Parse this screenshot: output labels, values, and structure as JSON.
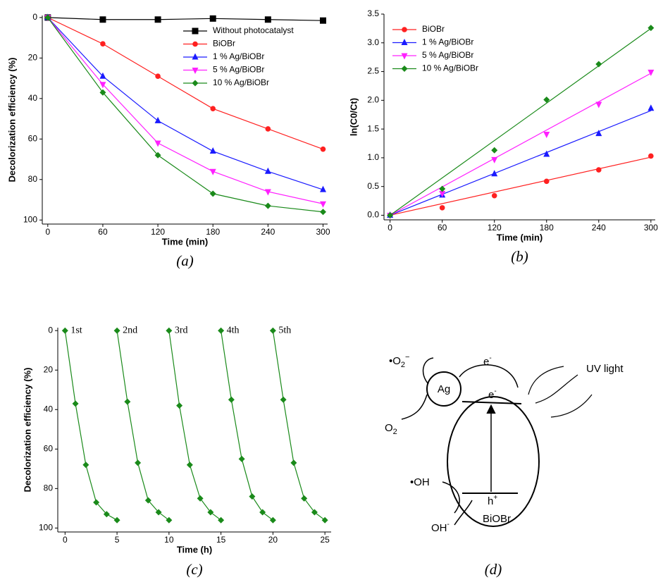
{
  "chart_data": [
    {
      "type": "line",
      "caption": "(a)",
      "xlabel": "Time (min)",
      "ylabel": "Decolorization efficiency (%)",
      "x": [
        0,
        60,
        120,
        180,
        240,
        300
      ],
      "xlim": [
        -6,
        305
      ],
      "xticks": [
        0,
        60,
        120,
        180,
        240,
        300
      ],
      "ylim": [
        -1,
        102
      ],
      "yticks": [
        0,
        20,
        40,
        60,
        80,
        100
      ],
      "y_inverted": true,
      "legend": "upper right",
      "series": [
        {
          "name": "Without photocatalyst",
          "color": "#000000",
          "marker": "square",
          "values": [
            0,
            1,
            1,
            0.5,
            1,
            1.5
          ]
        },
        {
          "name": "BiOBr",
          "color": "#ff2020",
          "marker": "circle",
          "values": [
            0,
            13,
            29,
            45,
            55,
            65
          ]
        },
        {
          "name": "1 % Ag/BiOBr",
          "color": "#1a1aff",
          "marker": "triangle-up",
          "values": [
            0,
            29,
            51,
            66,
            76,
            85
          ]
        },
        {
          "name": "5 % Ag/BiOBr",
          "color": "#ff20ff",
          "marker": "triangle-down",
          "values": [
            0,
            33,
            62,
            76,
            86,
            92
          ]
        },
        {
          "name": "10 % Ag/BiOBr",
          "color": "#1a8a1a",
          "marker": "diamond",
          "values": [
            0,
            37,
            68,
            87,
            93,
            96
          ]
        }
      ]
    },
    {
      "type": "scatter",
      "caption": "(b)",
      "xlabel": "Time (min)",
      "ylabel": "ln(C0/Ct)",
      "x": [
        0,
        60,
        120,
        180,
        240,
        300
      ],
      "xlim": [
        -7,
        305
      ],
      "xticks": [
        0,
        60,
        120,
        180,
        240,
        300
      ],
      "ylim": [
        -0.08,
        3.5
      ],
      "yticks": [
        {
          "value": 0,
          "label": "0.0"
        },
        0.5,
        {
          "value": 1,
          "label": "1.0"
        },
        1.5,
        {
          "value": 2,
          "label": "2.0"
        },
        2.5,
        {
          "value": 3,
          "label": "3.0"
        },
        3.5
      ],
      "legend": "upper left",
      "series": [
        {
          "name": "BiOBr",
          "color": "#ff2020",
          "marker": "circle",
          "values": [
            0,
            0.13,
            0.34,
            0.59,
            0.79,
            1.03
          ],
          "fit_x": [
            0,
            300
          ],
          "fit_y": [
            0,
            1.01
          ]
        },
        {
          "name": "1 % Ag/BiOBr",
          "color": "#1a1aff",
          "marker": "triangle-up",
          "values": [
            0,
            0.35,
            0.72,
            1.06,
            1.42,
            1.86
          ],
          "fit_x": [
            0,
            300
          ],
          "fit_y": [
            0,
            1.82
          ]
        },
        {
          "name": "5 % Ag/BiOBr",
          "color": "#ff20ff",
          "marker": "triangle-down",
          "values": [
            0,
            0.38,
            0.97,
            1.41,
            1.93,
            2.49
          ],
          "fit_x": [
            0,
            300
          ],
          "fit_y": [
            0,
            2.47
          ]
        },
        {
          "name": "10 % Ag/BiOBr",
          "color": "#1a8a1a",
          "marker": "diamond",
          "values": [
            0,
            0.46,
            1.13,
            2.01,
            2.63,
            3.26
          ],
          "fit_x": [
            0,
            300
          ],
          "fit_y": [
            0,
            3.25
          ]
        }
      ]
    },
    {
      "type": "line",
      "caption": "(c)",
      "xlabel": "Time (h)",
      "ylabel": "Decolorization efficiency (%)",
      "xlim": [
        -0.7,
        25.6
      ],
      "xticks": [
        0,
        5,
        10,
        15,
        20,
        25
      ],
      "ylim": [
        -1.5,
        102
      ],
      "yticks": [
        0,
        20,
        40,
        60,
        80,
        100
      ],
      "y_inverted": true,
      "legend": "none",
      "point_labels": true,
      "series": [
        {
          "name": "1st",
          "color": "#1a8a1a",
          "marker": "diamond",
          "x": [
            0,
            1,
            2,
            3,
            4,
            5
          ],
          "values": [
            0,
            37,
            68,
            87,
            93,
            96
          ]
        },
        {
          "name": "2nd",
          "color": "#1a8a1a",
          "marker": "diamond",
          "x": [
            5,
            6,
            7,
            8,
            9,
            10
          ],
          "values": [
            0,
            36,
            67,
            86,
            92,
            96
          ]
        },
        {
          "name": "3rd",
          "color": "#1a8a1a",
          "marker": "diamond",
          "x": [
            10,
            11,
            12,
            13,
            14,
            15
          ],
          "values": [
            0,
            38,
            68,
            85,
            92,
            96
          ]
        },
        {
          "name": "4th",
          "color": "#1a8a1a",
          "marker": "diamond",
          "x": [
            15,
            16,
            17,
            18,
            19,
            20
          ],
          "values": [
            0,
            35,
            65,
            84,
            92,
            96
          ]
        },
        {
          "name": "5th",
          "color": "#1a8a1a",
          "marker": "diamond",
          "x": [
            20,
            21,
            22,
            23,
            24,
            25
          ],
          "values": [
            0,
            35,
            67,
            85,
            92,
            96
          ]
        }
      ]
    }
  ],
  "diagram": {
    "caption": "(d)",
    "o2_radical": [
      "•O",
      "2",
      "−"
    ],
    "e_top": [
      "e",
      "-"
    ],
    "uv": "UV light",
    "ag": "Ag",
    "e_cb": [
      "e",
      "-"
    ],
    "o2": [
      "O",
      "2"
    ],
    "oh_radical": "•OH",
    "h_vb": [
      "h",
      "+"
    ],
    "oh": [
      "OH",
      "-"
    ],
    "material": "BiOBr"
  }
}
